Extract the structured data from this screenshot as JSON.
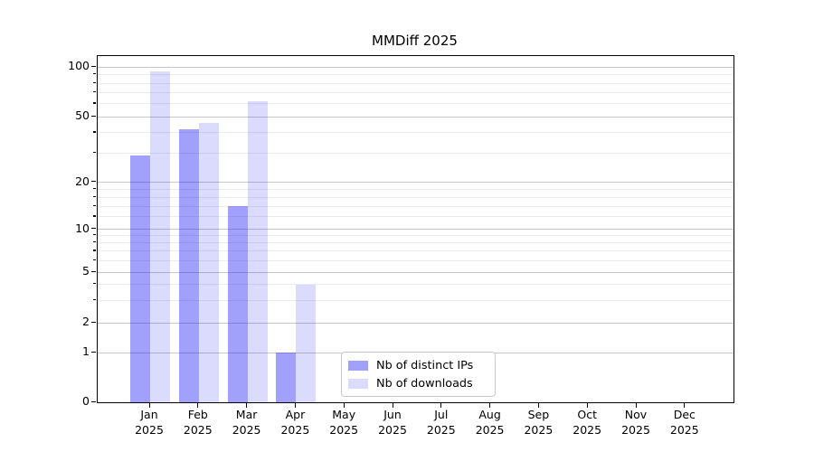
{
  "figure": {
    "title": "MMDiff 2025"
  },
  "chart_data": {
    "type": "bar",
    "title": "MMDiff 2025",
    "categories": [
      "Jan 2025",
      "Feb 2025",
      "Mar 2025",
      "Apr 2025",
      "May 2025",
      "Jun 2025",
      "Jul 2025",
      "Aug 2025",
      "Sep 2025",
      "Oct 2025",
      "Nov 2025",
      "Dec 2025"
    ],
    "x_tick_labels": [
      {
        "line1": "Jan",
        "line2": "2025"
      },
      {
        "line1": "Feb",
        "line2": "2025"
      },
      {
        "line1": "Mar",
        "line2": "2025"
      },
      {
        "line1": "Apr",
        "line2": "2025"
      },
      {
        "line1": "May",
        "line2": "2025"
      },
      {
        "line1": "Jun",
        "line2": "2025"
      },
      {
        "line1": "Jul",
        "line2": "2025"
      },
      {
        "line1": "Aug",
        "line2": "2025"
      },
      {
        "line1": "Sep",
        "line2": "2025"
      },
      {
        "line1": "Oct",
        "line2": "2025"
      },
      {
        "line1": "Nov",
        "line2": "2025"
      },
      {
        "line1": "Dec",
        "line2": "2025"
      }
    ],
    "series": [
      {
        "name": "Nb of distinct IPs",
        "color": "rgba(30,30,245,0.42)",
        "values": [
          29,
          42,
          14,
          1,
          0,
          0,
          0,
          0,
          0,
          0,
          0,
          0
        ]
      },
      {
        "name": "Nb of downloads",
        "color": "rgba(30,30,245,0.16)",
        "values": [
          94,
          46,
          62,
          4,
          0,
          0,
          0,
          0,
          0,
          0,
          0,
          0
        ]
      }
    ],
    "yscale": "symlog",
    "yticks_major": [
      0,
      1,
      2,
      5,
      10,
      20,
      50,
      100
    ],
    "yticks_minor": [
      3,
      4,
      6,
      7,
      8,
      9,
      12,
      14,
      16,
      18,
      30,
      40,
      60,
      70,
      80,
      90
    ],
    "ylim": [
      0,
      112
    ],
    "grid": true,
    "legend_position": "lower center",
    "colors": {
      "bar_distinct_ips": "rgba(30,30,245,0.42)",
      "bar_downloads": "rgba(30,30,245,0.16)",
      "grid_major": "#c6c6c6",
      "grid_minor": "#ebebeb"
    }
  }
}
